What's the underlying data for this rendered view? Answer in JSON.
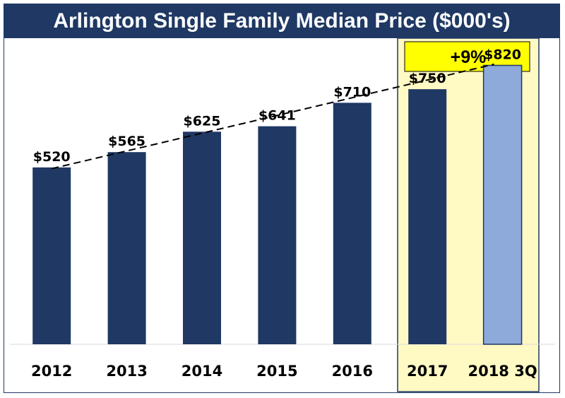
{
  "colors": {
    "title_bg": "#1f3864",
    "bar": "#1f3864",
    "bar_highlight": "#8eaadb",
    "highlight_panel": "#fff9c4",
    "badge": "#ffff00"
  },
  "badge": {
    "text": "+9%"
  },
  "chart_data": {
    "type": "bar",
    "title": "Arlington Single Family Median Price ($000's)",
    "categories": [
      "2012",
      "2013",
      "2014",
      "2015",
      "2016",
      "2017",
      "2018 3Q"
    ],
    "values": [
      520,
      565,
      625,
      641,
      710,
      750,
      820
    ],
    "data_labels": [
      "$520",
      "$565",
      "$625",
      "$641",
      "$710",
      "$750",
      "$820"
    ],
    "highlighted_categories": [
      "2017",
      "2018 3Q"
    ],
    "trendline": "dashed linear",
    "ylim": [
      0,
      900
    ],
    "grid": false,
    "legend": "none"
  }
}
